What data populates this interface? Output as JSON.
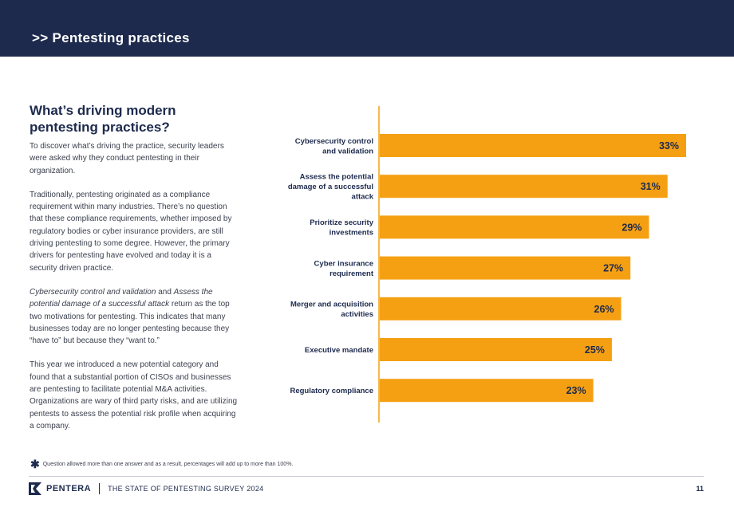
{
  "header": {
    "title": ">> Pentesting practices"
  },
  "left": {
    "heading_line1": "What’s driving modern",
    "heading_line2": "pentesting practices?",
    "p1": "To discover what’s driving the practice, security leaders were asked why they conduct pentesting in their organization.",
    "p2": "Traditionally, pentesting originated as a compliance requirement within many industries. There’s no question that these compliance requirements, whether imposed by regulatory bodies or cyber insurance providers, are still driving pentesting to some degree. However, the primary drivers for pentesting have evolved and today it is a security driven practice.",
    "p3_italic1": "Cybersecurity control and validation",
    "p3_and": " and ",
    "p3_italic2": "Assess the potential damage of a successful attack",
    "p3_rest": " return as the top two motivations for pentesting. This indicates that many businesses today are no longer pentesting because they “have to” but because they “want to.”",
    "p4": "This year we introduced a new potential category and found that a substantial portion of CISOs and businesses are pentesting to facilitate potential M&A activities. Organizations are wary of third party risks, and are utilizing pentests to assess the potential risk profile when acquiring a company."
  },
  "chart_data": {
    "type": "bar",
    "orientation": "horizontal",
    "categories": [
      [
        "Cybersecurity control",
        "and validation"
      ],
      [
        "Assess the potential",
        "damage of a successful",
        "attack"
      ],
      [
        "Prioritize security",
        "investments"
      ],
      [
        "Cyber insurance",
        "requirement"
      ],
      [
        "Merger and acquisition",
        "activities"
      ],
      [
        "Executive mandate"
      ],
      [
        "Regulatory compliance"
      ]
    ],
    "values": [
      33,
      31,
      29,
      27,
      26,
      25,
      23
    ],
    "value_labels": [
      "33%",
      "31%",
      "29%",
      "27%",
      "26%",
      "25%",
      "23%"
    ],
    "xlim": [
      0,
      33
    ],
    "grid": false
  },
  "colors": {
    "bar": "#f5a013",
    "axis": "#f5a013",
    "navy": "#1d2a4d"
  },
  "footer": {
    "footnote_mark": "✱",
    "footnote": "Question allowed more than one answer and as a result, percentages will add up to more than 100%.",
    "brand": "PENTERA",
    "survey": "THE STATE OF PENTESTING SURVEY 2024",
    "page": "11"
  }
}
